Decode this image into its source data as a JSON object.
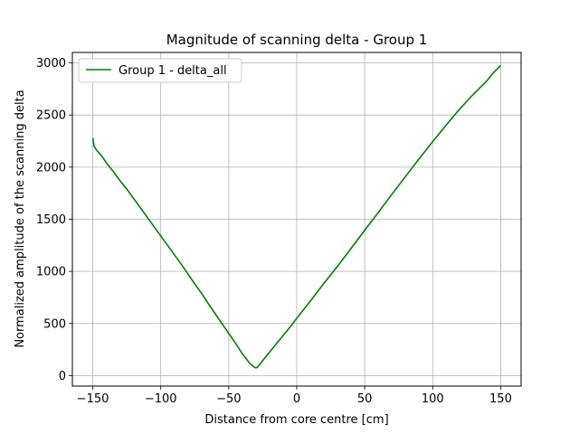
{
  "chart_data": {
    "type": "line",
    "title": "Magnitude of scanning delta - Group 1",
    "xlabel": "Distance from core centre [cm]",
    "ylabel": "Normalized amplitude of the scanning delta",
    "xlim": [
      -165,
      165
    ],
    "ylim": [
      -100,
      3100
    ],
    "xticks": [
      -150,
      -100,
      -50,
      0,
      50,
      100,
      150
    ],
    "yticks": [
      0,
      500,
      1000,
      1500,
      2000,
      2500,
      3000
    ],
    "xtick_labels": [
      "−150",
      "−100",
      "−50",
      "0",
      "50",
      "100",
      "150"
    ],
    "ytick_labels": [
      "0",
      "500",
      "1000",
      "1500",
      "2000",
      "2500",
      "3000"
    ],
    "grid": true,
    "legend_position": "top-left",
    "series": [
      {
        "name": "Group 1 - delta_all",
        "color": "#008000",
        "x": [
          -150,
          -149,
          -147,
          -145,
          -143,
          -140,
          -135,
          -130,
          -125,
          -120,
          -115,
          -110,
          -105,
          -100,
          -95,
          -90,
          -85,
          -80,
          -75,
          -70,
          -65,
          -60,
          -55,
          -50,
          -45,
          -40,
          -37,
          -35,
          -33,
          -31,
          -30,
          -29,
          -27,
          -25,
          -20,
          -15,
          -10,
          -5,
          0,
          10,
          20,
          30,
          40,
          50,
          60,
          70,
          80,
          90,
          100,
          110,
          120,
          130,
          140,
          145,
          150
        ],
        "y": [
          2280,
          2200,
          2160,
          2130,
          2100,
          2040,
          1960,
          1870,
          1790,
          1700,
          1610,
          1520,
          1430,
          1340,
          1250,
          1160,
          1070,
          975,
          880,
          790,
          690,
          595,
          500,
          405,
          310,
          210,
          160,
          125,
          100,
          80,
          75,
          80,
          110,
          145,
          225,
          305,
          385,
          465,
          550,
          715,
          885,
          1050,
          1220,
          1395,
          1565,
          1740,
          1910,
          2080,
          2245,
          2405,
          2560,
          2700,
          2830,
          2910,
          2975
        ]
      }
    ]
  }
}
